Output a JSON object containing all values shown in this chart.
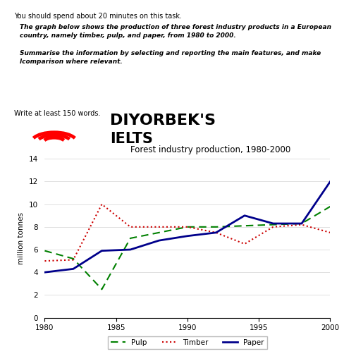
{
  "title": "Forest industry production, 1980-2000",
  "ylabel": "million tonnes",
  "xlim": [
    1980,
    2000
  ],
  "ylim": [
    0,
    14
  ],
  "yticks": [
    0,
    2,
    4,
    6,
    8,
    10,
    12,
    14
  ],
  "xticks": [
    1980,
    1985,
    1990,
    1995,
    2000
  ],
  "pulp_x": [
    1980,
    1982,
    1984,
    1986,
    1988,
    1990,
    1992,
    1994,
    1996,
    1998,
    2000
  ],
  "pulp_y": [
    5.9,
    5.2,
    2.5,
    7.0,
    7.5,
    8.0,
    8.0,
    8.1,
    8.2,
    8.3,
    9.8
  ],
  "timber_x": [
    1980,
    1982,
    1984,
    1986,
    1988,
    1990,
    1992,
    1994,
    1996,
    1998,
    2000
  ],
  "timber_y": [
    5.0,
    5.1,
    10.0,
    8.0,
    8.0,
    8.0,
    7.5,
    6.5,
    8.0,
    8.2,
    7.5
  ],
  "paper_x": [
    1980,
    1982,
    1984,
    1986,
    1988,
    1990,
    1992,
    1994,
    1996,
    1998,
    2000
  ],
  "paper_y": [
    4.0,
    4.3,
    5.9,
    6.0,
    6.8,
    7.2,
    7.5,
    9.0,
    8.3,
    8.3,
    12.0
  ],
  "pulp_color": "#008000",
  "timber_color": "#cc0000",
  "paper_color": "#00008B",
  "header_text": "You should spend about 20 minutes on this task.",
  "box_line1": "The graph below shows the production of three forest industry products in a European",
  "box_line2": "country, namely timber, pulp, and paper, from 1980 to 2000.",
  "box_line3": "Summarise the information by selecting and reporting the main features, and make",
  "box_line4": "lcomparison where relevant.",
  "write_text": "Write at least 150 words.",
  "brand_name": "DIYORBEK'S",
  "brand_sub": "IELTS",
  "bg_color": "#ffffff",
  "title_fontsize": 8.5,
  "axis_fontsize": 7.5,
  "tick_fontsize": 7.5,
  "legend_fontsize": 7.5
}
